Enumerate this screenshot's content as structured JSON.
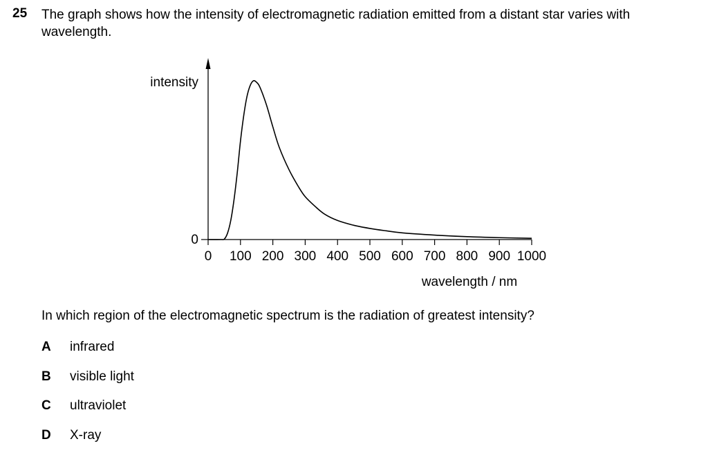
{
  "question": {
    "number": "25",
    "stem": "The graph shows how the intensity of electromagnetic radiation emitted from a distant star varies with wavelength.",
    "prompt": "In which region of the electromagnetic spectrum is the radiation of greatest intensity?"
  },
  "options": [
    {
      "letter": "A",
      "text": "infrared"
    },
    {
      "letter": "B",
      "text": "visible light"
    },
    {
      "letter": "C",
      "text": "ultraviolet"
    },
    {
      "letter": "D",
      "text": "X-ray"
    }
  ],
  "chart_data": {
    "type": "line",
    "title": "",
    "xlabel": "wavelength / nm",
    "ylabel": "intensity",
    "xlim": [
      0,
      1000
    ],
    "x_ticks": [
      0,
      100,
      200,
      300,
      400,
      500,
      600,
      700,
      800,
      900,
      1000
    ],
    "y_ticks": [
      0
    ],
    "grid": false,
    "series": [
      {
        "x": [
          0,
          40,
          50,
          60,
          70,
          80,
          90,
          100,
          110,
          120,
          130,
          140,
          150,
          160,
          180,
          200,
          220,
          250,
          280,
          300,
          330,
          360,
          400,
          450,
          500,
          550,
          600,
          700,
          800,
          900,
          1000
        ],
        "y": [
          0,
          0,
          0.3,
          4,
          12,
          25,
          42,
          62,
          78,
          90,
          97,
          100,
          99,
          96,
          85,
          71,
          58,
          44,
          33,
          27,
          21,
          16,
          12,
          9,
          7,
          5.5,
          4.2,
          2.8,
          1.8,
          1.2,
          0.8
        ]
      }
    ]
  }
}
